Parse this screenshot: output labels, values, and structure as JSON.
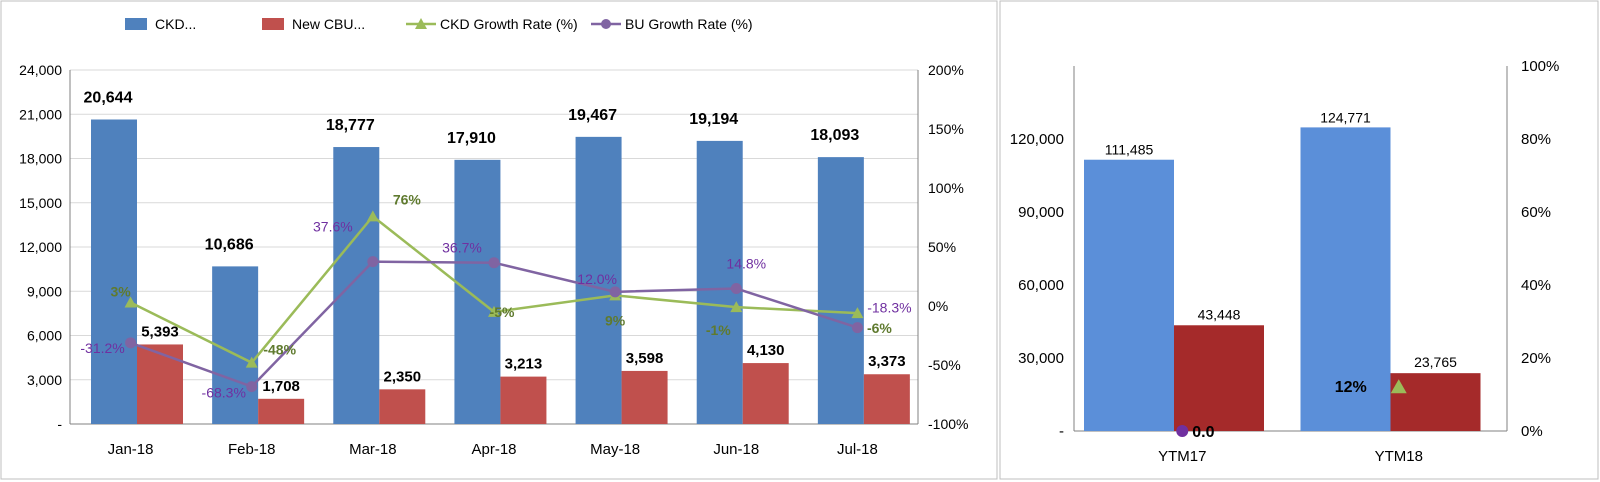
{
  "chart_data": [
    {
      "type": "bar",
      "categories": [
        "Jan-18",
        "Feb-18",
        "Mar-18",
        "Apr-18",
        "May-18",
        "Jun-18",
        "Jul-18"
      ],
      "series": [
        {
          "name": "CKD...",
          "kind": "bar",
          "color": "#4f81bd",
          "values": [
            20644,
            10686,
            18777,
            17910,
            19467,
            19194,
            18093
          ],
          "labels": [
            "20,644",
            "10,686",
            "18,777",
            "17,910",
            "19,467",
            "19,194",
            "18,093"
          ]
        },
        {
          "name": "New CBU...",
          "kind": "bar",
          "color": "#c0504d",
          "values": [
            5393,
            1708,
            2350,
            3213,
            3598,
            4130,
            3373
          ],
          "labels": [
            "5,393",
            "1,708",
            "2,350",
            "3,213",
            "3,598",
            "4,130",
            "3,373"
          ]
        },
        {
          "name": "CKD Growth Rate (%)",
          "kind": "line",
          "axis": "right",
          "color": "#9bbb59",
          "label_color": "#5f7a2e",
          "values": [
            3,
            -48,
            76,
            -5,
            9,
            -1,
            -6
          ],
          "labels": [
            "3%",
            "-48%",
            "76%",
            "-5%",
            "9%",
            "-1%",
            "-6%"
          ]
        },
        {
          "name": "BU Growth Rate (%)",
          "kind": "line",
          "axis": "right",
          "color": "#8064a2",
          "label_color": "#7030a0",
          "values": [
            -31.2,
            -68.3,
            37.6,
            36.7,
            12.0,
            14.8,
            -18.3
          ],
          "labels": [
            "-31.2%",
            "-68.3%",
            "37.6%",
            "36.7%",
            "12.0%",
            "14.8%",
            "-18.3%"
          ]
        }
      ],
      "ylim": [
        0,
        24000
      ],
      "y_ticks": [
        "-",
        "3,000",
        "6,000",
        "9,000",
        "12,000",
        "15,000",
        "18,000",
        "21,000",
        "24,000"
      ],
      "y2lim": [
        -100,
        200
      ],
      "y2_ticks": [
        "-100%",
        "-50%",
        "0%",
        "50%",
        "100%",
        "150%",
        "200%"
      ],
      "legend": "top",
      "grid": true
    },
    {
      "type": "bar",
      "categories": [
        "YTM17",
        "YTM18"
      ],
      "series": [
        {
          "name": "CKD",
          "kind": "bar",
          "color": "#5b8fd9",
          "values": [
            111485,
            124771
          ],
          "labels": [
            "111,485",
            "124,771"
          ]
        },
        {
          "name": "New CBU",
          "kind": "bar",
          "color": "#a52a2a",
          "values": [
            43448,
            23765
          ],
          "labels": [
            "43,448",
            "23,765"
          ]
        },
        {
          "name": "CKD Growth Rate",
          "kind": "marker",
          "color": "#9bbb59",
          "values": [
            null,
            12
          ],
          "labels": [
            "",
            "12%"
          ]
        },
        {
          "name": "BU Growth Rate",
          "kind": "marker",
          "color": "#7030a0",
          "values": [
            0.0,
            null
          ],
          "labels": [
            "0.0",
            ""
          ]
        }
      ],
      "ylim": [
        0,
        150000
      ],
      "y_ticks": [
        "-",
        "30,000",
        "60,000",
        "90,000",
        "120,000"
      ],
      "y2lim": [
        0,
        100
      ],
      "y2_ticks": [
        "0%",
        "20%",
        "40%",
        "60%",
        "80%",
        "100%"
      ],
      "grid": false
    }
  ]
}
